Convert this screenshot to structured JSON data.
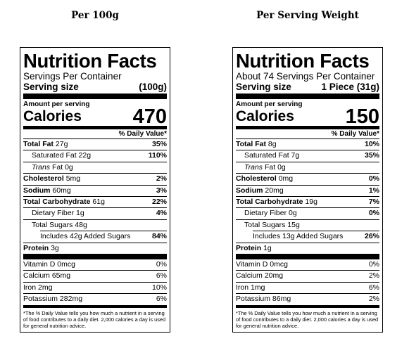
{
  "headings": {
    "left": "Per 100g",
    "right": "Per Serving Weight"
  },
  "labels": [
    {
      "title": "Nutrition Facts",
      "servings": "Servings Per Container",
      "serving_size_label": "Serving size",
      "serving_size_value": "(100g)",
      "amount_per_serving": "Amount per serving",
      "calories_label": "Calories",
      "calories_value": "470",
      "dv_header": "% Daily Value*",
      "total_fat": {
        "label": "Total Fat",
        "amount": "27g",
        "pct": "35%"
      },
      "saturated_fat": {
        "label": "Saturated Fat 22g",
        "pct": "110%"
      },
      "trans_fat": {
        "label": "Trans",
        "amount": "Fat 0g"
      },
      "cholesterol": {
        "label": "Cholesterol",
        "amount": "5mg",
        "pct": "2%"
      },
      "sodium": {
        "label": "Sodium",
        "amount": "60mg",
        "pct": "3%"
      },
      "total_carb": {
        "label": "Total Carbohydrate",
        "amount": "61g",
        "pct": "22%"
      },
      "fiber": {
        "label": "Dietary Fiber 1g",
        "pct": "4%"
      },
      "sugars": {
        "label": "Total Sugars 48g"
      },
      "added_sugars": {
        "label": "Includes 42g Added Sugars",
        "pct": "84%"
      },
      "protein": {
        "label": "Protein",
        "amount": "3g"
      },
      "vitamin_d": {
        "label": "Vitamin D 0mcg",
        "pct": "0%"
      },
      "calcium": {
        "label": "Calcium 65mg",
        "pct": "6%"
      },
      "iron": {
        "label": "Iron 2mg",
        "pct": "10%"
      },
      "potassium": {
        "label": "Potassium 282mg",
        "pct": "6%"
      },
      "footnote": "*The % Daily Value tells you how much a nutrient in a serving of food contributes to a daily diet. 2,000 calories a day is used for general nutrition advice."
    },
    {
      "title": "Nutrition Facts",
      "servings": "About 74 Servings Per Container",
      "serving_size_label": "Serving size",
      "serving_size_value": "1 Piece (31g)",
      "amount_per_serving": "Amount per serving",
      "calories_label": "Calories",
      "calories_value": "150",
      "dv_header": "% Daily Value*",
      "total_fat": {
        "label": "Total Fat",
        "amount": "8g",
        "pct": "10%"
      },
      "saturated_fat": {
        "label": "Saturated Fat 7g",
        "pct": "35%"
      },
      "trans_fat": {
        "label": "Trans",
        "amount": "Fat 0g"
      },
      "cholesterol": {
        "label": "Cholesterol",
        "amount": "0mg",
        "pct": "0%"
      },
      "sodium": {
        "label": "Sodium",
        "amount": "20mg",
        "pct": "1%"
      },
      "total_carb": {
        "label": "Total Carbohydrate",
        "amount": "19g",
        "pct": "7%"
      },
      "fiber": {
        "label": "Dietary Fiber 0g",
        "pct": "0%"
      },
      "sugars": {
        "label": "Total Sugars 15g"
      },
      "added_sugars": {
        "label": "Includes 13g Added Sugars",
        "pct": "26%"
      },
      "protein": {
        "label": "Protein",
        "amount": "1g"
      },
      "vitamin_d": {
        "label": "Vitamin D 0mcg",
        "pct": "0%"
      },
      "calcium": {
        "label": "Calcium 20mg",
        "pct": "2%"
      },
      "iron": {
        "label": "Iron 1mg",
        "pct": "6%"
      },
      "potassium": {
        "label": "Potassium 86mg",
        "pct": "2%"
      },
      "footnote": "*The % Daily Value tells you how much a nutrient in a serving of food contributes to a daily diet. 2,000 calories a day is used for general nutrition advice."
    }
  ]
}
